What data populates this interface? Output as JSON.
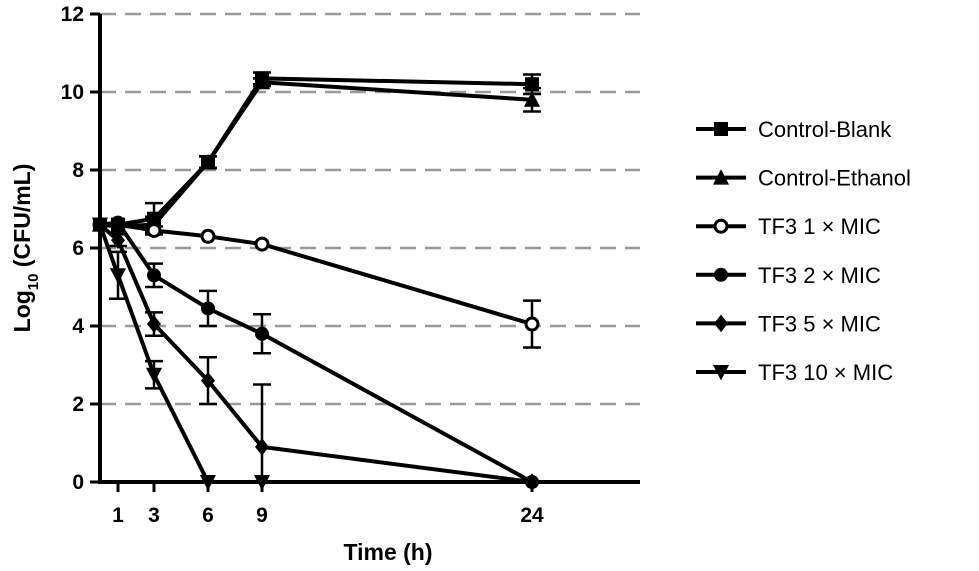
{
  "chart_data": {
    "type": "line",
    "xlabel": "Time (h)",
    "ylabel": "Log10 (CFU/mL)",
    "ylabel_parts": {
      "prefix": "Log",
      "subscript": "10",
      "suffix": " (CFU/mL)"
    },
    "xlim": [
      0,
      30
    ],
    "ylim": [
      0,
      12
    ],
    "x_ticks": [
      1,
      3,
      6,
      9,
      24
    ],
    "y_ticks": [
      0,
      2,
      4,
      6,
      8,
      10,
      12
    ],
    "grid": {
      "horizontal": true,
      "style": "dashed",
      "color": "#999999"
    },
    "legend_position": "right",
    "series": [
      {
        "name": "Control-Blank",
        "marker": "square",
        "x": [
          0,
          1,
          3,
          6,
          9,
          24
        ],
        "y": [
          6.6,
          6.6,
          6.75,
          8.2,
          10.35,
          10.2
        ],
        "err": [
          0.05,
          0.05,
          0.4,
          0.15,
          0.15,
          0.25
        ]
      },
      {
        "name": "Control-Ethanol",
        "marker": "triangle-up",
        "x": [
          0,
          1,
          3,
          6,
          9,
          24
        ],
        "y": [
          6.6,
          6.55,
          6.6,
          8.2,
          10.25,
          9.8
        ],
        "err": [
          0.05,
          0.05,
          0.2,
          0.15,
          0.1,
          0.3
        ]
      },
      {
        "name": "TF3 1 × MIC",
        "marker": "circle-open",
        "x": [
          0,
          1,
          3,
          6,
          9,
          24
        ],
        "y": [
          6.6,
          6.6,
          6.45,
          6.3,
          6.1,
          4.05
        ],
        "err": [
          0.05,
          0.05,
          0.1,
          0.05,
          0.05,
          0.6
        ]
      },
      {
        "name": "TF3 2 × MIC",
        "marker": "circle",
        "x": [
          0,
          1,
          3,
          6,
          9,
          24
        ],
        "y": [
          6.6,
          6.65,
          5.3,
          4.45,
          3.8,
          0
        ],
        "err": [
          0.05,
          0.05,
          0.3,
          0.45,
          0.5,
          0
        ]
      },
      {
        "name": "TF3 5 × MIC",
        "marker": "diamond",
        "x": [
          0,
          1,
          3,
          6,
          9,
          24
        ],
        "y": [
          6.6,
          6.2,
          4.05,
          2.6,
          0.9,
          0
        ],
        "err": [
          0.05,
          0.15,
          0.3,
          0.6,
          1.6,
          0
        ]
      },
      {
        "name": "TF3 10 × MIC",
        "marker": "triangle-down",
        "x": [
          0,
          1,
          3,
          6,
          9
        ],
        "y": [
          6.6,
          5.3,
          2.75,
          0,
          0
        ],
        "err": [
          0.05,
          0.6,
          0.35,
          0,
          0
        ]
      }
    ]
  }
}
